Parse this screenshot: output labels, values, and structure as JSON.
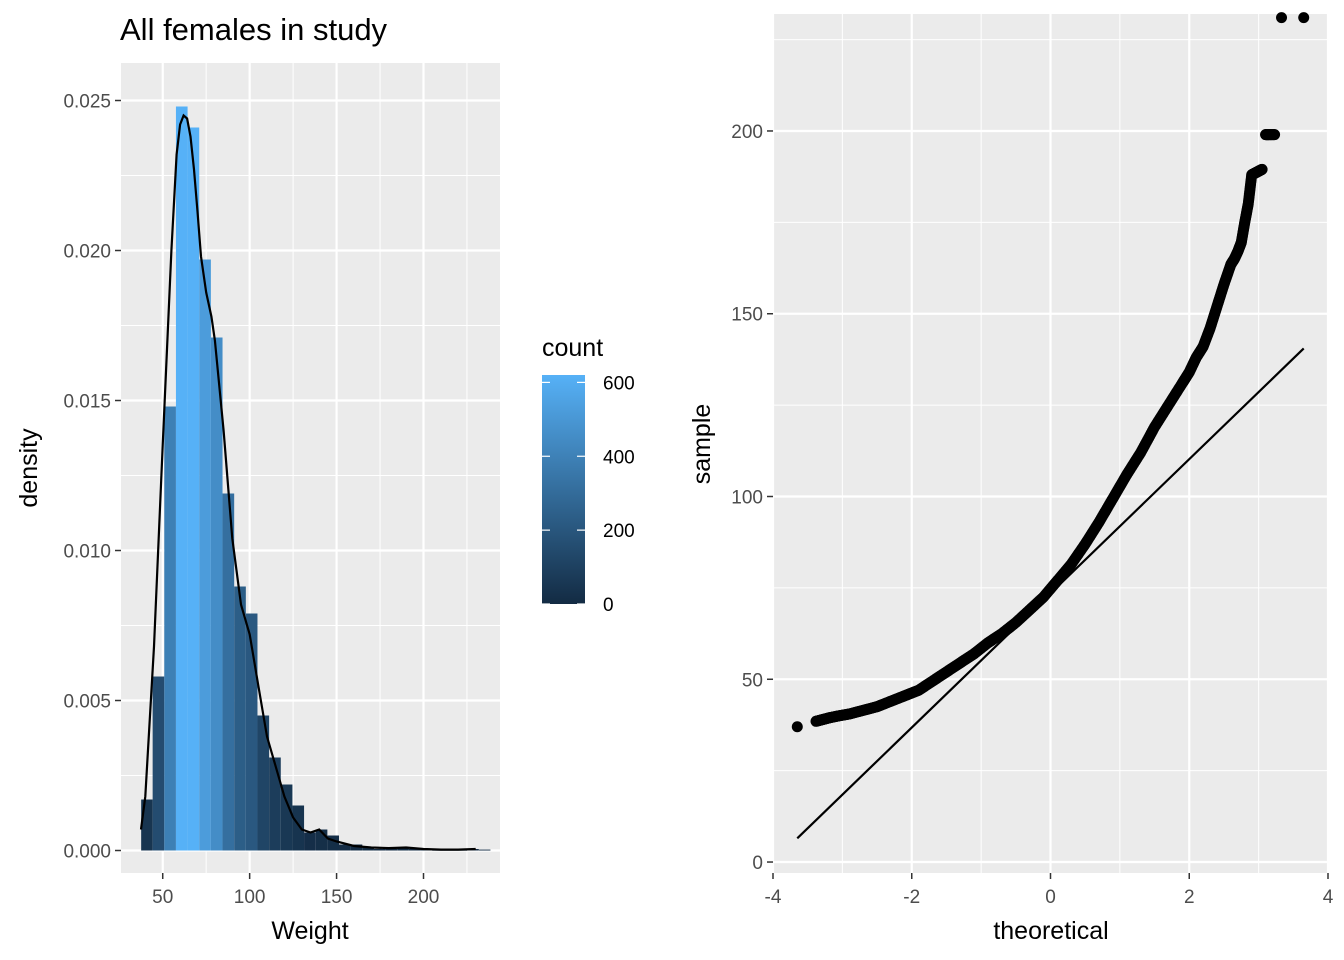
{
  "chart_data": [
    {
      "type": "bar",
      "title": "All females in study",
      "xlabel": "Weight",
      "ylabel": "density",
      "xlim": [
        26,
        244
      ],
      "ylim": [
        -0.00075,
        0.02625
      ],
      "x_ticks": [
        "50",
        "100",
        "150",
        "200"
      ],
      "x_tick_values": [
        50,
        100,
        150,
        200
      ],
      "y_ticks": [
        "0.000",
        "0.005",
        "0.010",
        "0.015",
        "0.020",
        "0.025"
      ],
      "y_tick_values": [
        0,
        0.005,
        0.01,
        0.015,
        0.02,
        0.025
      ],
      "grid": true,
      "bins": [
        {
          "x0": 37.6,
          "x1": 44.2,
          "density": 0.0017
        },
        {
          "x0": 44.2,
          "x1": 50.9,
          "density": 0.0058
        },
        {
          "x0": 50.9,
          "x1": 57.6,
          "density": 0.0148
        },
        {
          "x0": 57.6,
          "x1": 64.3,
          "density": 0.0248
        },
        {
          "x0": 64.3,
          "x1": 71.0,
          "density": 0.0241
        },
        {
          "x0": 71.0,
          "x1": 77.7,
          "density": 0.0197
        },
        {
          "x0": 77.7,
          "x1": 84.4,
          "density": 0.0171
        },
        {
          "x0": 84.4,
          "x1": 91.1,
          "density": 0.0119
        },
        {
          "x0": 91.1,
          "x1": 97.8,
          "density": 0.0088
        },
        {
          "x0": 97.8,
          "x1": 104.5,
          "density": 0.0079
        },
        {
          "x0": 104.5,
          "x1": 111.2,
          "density": 0.0045
        },
        {
          "x0": 111.2,
          "x1": 117.9,
          "density": 0.0031
        },
        {
          "x0": 117.9,
          "x1": 124.6,
          "density": 0.0022
        },
        {
          "x0": 124.6,
          "x1": 131.3,
          "density": 0.0015
        },
        {
          "x0": 131.3,
          "x1": 138.0,
          "density": 0.0006
        },
        {
          "x0": 138.0,
          "x1": 144.7,
          "density": 0.0007
        },
        {
          "x0": 144.7,
          "x1": 151.4,
          "density": 0.0005
        },
        {
          "x0": 151.4,
          "x1": 158.1,
          "density": 0.0002
        },
        {
          "x0": 158.1,
          "x1": 164.8,
          "density": 0.0002
        },
        {
          "x0": 164.8,
          "x1": 171.5,
          "density": 0.0001
        },
        {
          "x0": 171.5,
          "x1": 178.2,
          "density": 5e-05
        },
        {
          "x0": 178.2,
          "x1": 184.9,
          "density": 5e-05
        },
        {
          "x0": 184.9,
          "x1": 191.6,
          "density": 0.0001
        },
        {
          "x0": 191.6,
          "x1": 198.3,
          "density": 5e-05
        },
        {
          "x0": 198.3,
          "x1": 205.0,
          "density": 3e-05
        },
        {
          "x0": 205.0,
          "x1": 211.7,
          "density": 2e-05
        },
        {
          "x0": 211.7,
          "x1": 218.4,
          "density": 2e-05
        },
        {
          "x0": 218.4,
          "x1": 225.1,
          "density": 2e-05
        },
        {
          "x0": 225.1,
          "x1": 231.8,
          "density": 5e-05
        },
        {
          "x0": 231.8,
          "x1": 238.5,
          "density": 3e-05
        }
      ],
      "density_curve": {
        "x": [
          37.5,
          40,
          45,
          50,
          55,
          58,
          60,
          62,
          64,
          66,
          68,
          70,
          72,
          75,
          78,
          80,
          85,
          90,
          95,
          100,
          105,
          110,
          115,
          120,
          125,
          130,
          135,
          140,
          145,
          150,
          160,
          170,
          180,
          190,
          200,
          210,
          220,
          230
        ],
        "y": [
          0.0007,
          0.0018,
          0.0068,
          0.0135,
          0.02,
          0.0232,
          0.0242,
          0.0245,
          0.0244,
          0.0238,
          0.0227,
          0.0213,
          0.0198,
          0.0186,
          0.0178,
          0.017,
          0.014,
          0.0104,
          0.0082,
          0.0072,
          0.0055,
          0.0038,
          0.0028,
          0.0018,
          0.0011,
          0.0007,
          0.0006,
          0.0007,
          0.0004,
          0.0003,
          0.00015,
          0.0001,
          8e-05,
          0.0001,
          5e-05,
          3e-05,
          3e-05,
          5e-05
        ]
      },
      "legend": {
        "title": "count",
        "placement": "right",
        "ticks": [
          "0",
          "200",
          "400",
          "600"
        ],
        "tick_values": [
          0,
          200,
          400,
          600
        ],
        "range": [
          0,
          620
        ],
        "low_color": "#132B43",
        "high_color": "#56B1F7"
      }
    },
    {
      "type": "scatter",
      "xlabel": "theoretical",
      "ylabel": "sample",
      "xlim": [
        -4,
        4
      ],
      "ylim": [
        -3,
        232
      ],
      "x_ticks": [
        "-4",
        "-2",
        "0",
        "2",
        "4"
      ],
      "x_tick_values": [
        -4,
        -2,
        0,
        2,
        4
      ],
      "y_ticks": [
        "0",
        "50",
        "100",
        "150",
        "200"
      ],
      "y_tick_values": [
        0,
        50,
        100,
        150,
        200
      ],
      "grid": true,
      "point_color": "#000000",
      "qq_line": {
        "x": [
          -3.65,
          3.65
        ],
        "y": [
          6.5,
          140.5
        ]
      },
      "points": {
        "x": [
          -3.65,
          -3.38,
          -3.28,
          -3.18,
          -3.05,
          -2.9,
          -2.7,
          -2.5,
          -2.3,
          -2.1,
          -1.9,
          -1.7,
          -1.5,
          -1.3,
          -1.1,
          -0.9,
          -0.7,
          -0.5,
          -0.3,
          -0.1,
          0.1,
          0.3,
          0.5,
          0.7,
          0.9,
          1.1,
          1.3,
          1.5,
          1.7,
          1.9,
          2.0,
          2.1,
          2.2,
          2.3,
          2.4,
          2.5,
          2.6,
          2.65,
          2.7,
          2.75,
          2.8,
          2.85,
          2.9,
          2.95,
          3.0,
          3.05,
          3.1,
          3.15,
          3.23,
          3.33,
          3.65
        ],
        "y": [
          37,
          38.5,
          39,
          39.5,
          40,
          40.5,
          41.5,
          42.5,
          44,
          45.5,
          47,
          49.5,
          52,
          54.5,
          57,
          60,
          62.5,
          65.5,
          69,
          72.5,
          77,
          81.5,
          87,
          93,
          99.5,
          106,
          112,
          119,
          125,
          131,
          134,
          138,
          141,
          146,
          152,
          158,
          163.5,
          165,
          167,
          169.5,
          175,
          180,
          188,
          188.5,
          189,
          189.5,
          199,
          199,
          199,
          231,
          231
        ]
      }
    }
  ]
}
